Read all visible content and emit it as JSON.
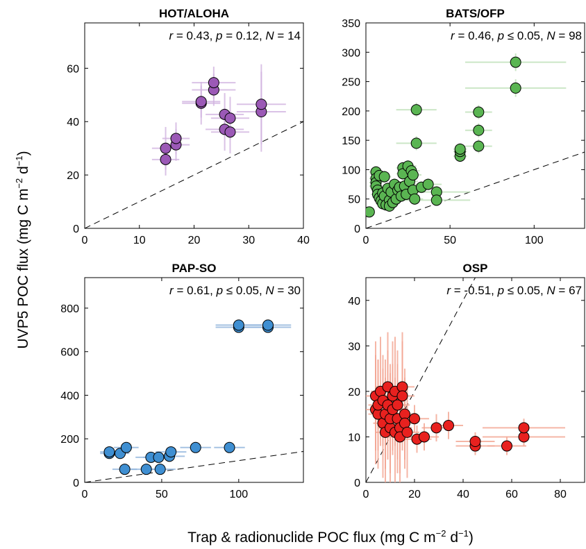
{
  "figure": {
    "xlabel_main": "Trap & radionuclide POC flux (mg C m",
    "xlabel_sup1": "−2",
    "xlabel_mid": " d",
    "xlabel_sup2": "−1",
    "xlabel_end": ")",
    "ylabel_main": "UVP5 POC flux (mg C m",
    "ylabel_sup1": "−2",
    "ylabel_mid": " d",
    "ylabel_sup2": "−1",
    "ylabel_end": ")"
  },
  "chart_data": [
    {
      "type": "scatter",
      "title": "HOT/ALOHA",
      "stats": {
        "r": "0.43",
        "p_rel": "=",
        "p": "0.12",
        "N": "14"
      },
      "xlim": [
        0,
        40
      ],
      "ylim": [
        0,
        77
      ],
      "xticks": [
        0,
        10,
        20,
        30,
        40
      ],
      "yticks": [
        0,
        20,
        40,
        60
      ],
      "one_to_one_line": true,
      "color": "#9b59b6",
      "errorbar_color": "#d2b4e0",
      "points": [
        {
          "x": 14.8,
          "y": 25.8,
          "xerr": 2.5,
          "yerr": 6
        },
        {
          "x": 14.8,
          "y": 30.0,
          "xerr": 2.5,
          "yerr": 8
        },
        {
          "x": 16.7,
          "y": 31.3,
          "xerr": 2.5,
          "yerr": 6
        },
        {
          "x": 16.7,
          "y": 33.7,
          "xerr": 2.5,
          "yerr": 6
        },
        {
          "x": 21.3,
          "y": 46.9,
          "xerr": 3.5,
          "yerr": 8
        },
        {
          "x": 21.3,
          "y": 47.5,
          "xerr": 3.5,
          "yerr": 6
        },
        {
          "x": 23.6,
          "y": 51.9,
          "xerr": 4,
          "yerr": 6
        },
        {
          "x": 23.6,
          "y": 54.6,
          "xerr": 4,
          "yerr": 6
        },
        {
          "x": 25.6,
          "y": 37.1,
          "xerr": 3.5,
          "yerr": 8
        },
        {
          "x": 25.6,
          "y": 42.7,
          "xerr": 3.5,
          "yerr": 8
        },
        {
          "x": 26.6,
          "y": 36.1,
          "xerr": 3.5,
          "yerr": 8
        },
        {
          "x": 26.6,
          "y": 41.3,
          "xerr": 3.5,
          "yerr": 8
        },
        {
          "x": 32.3,
          "y": 43.7,
          "xerr": 4.5,
          "yerr": 15
        },
        {
          "x": 32.3,
          "y": 46.5,
          "xerr": 4.5,
          "yerr": 15
        }
      ]
    },
    {
      "type": "scatter",
      "title": "BATS/OFP",
      "stats": {
        "r": "0.46",
        "p_rel": "≤",
        "p": "0.05",
        "N": "98"
      },
      "xlim": [
        0,
        130
      ],
      "ylim": [
        0,
        350
      ],
      "xticks": [
        0,
        50,
        100
      ],
      "yticks": [
        0,
        50,
        100,
        150,
        200,
        250,
        300,
        350
      ],
      "one_to_one_line": true,
      "color": "#5ab552",
      "errorbar_color": "#bfe0b8",
      "points": [
        {
          "x": 2,
          "y": 28,
          "xerr": 2,
          "yerr": 4
        },
        {
          "x": 6,
          "y": 96,
          "xerr": 4,
          "yerr": 10
        },
        {
          "x": 6,
          "y": 85,
          "xerr": 4,
          "yerr": 10
        },
        {
          "x": 6,
          "y": 78,
          "xerr": 4,
          "yerr": 10
        },
        {
          "x": 6,
          "y": 72,
          "xerr": 4,
          "yerr": 10
        },
        {
          "x": 7,
          "y": 65,
          "xerr": 4,
          "yerr": 10
        },
        {
          "x": 7,
          "y": 58,
          "xerr": 4,
          "yerr": 10
        },
        {
          "x": 8,
          "y": 90,
          "xerr": 4,
          "yerr": 10
        },
        {
          "x": 8,
          "y": 52,
          "xerr": 4,
          "yerr": 10
        },
        {
          "x": 9,
          "y": 47,
          "xerr": 4,
          "yerr": 10
        },
        {
          "x": 10,
          "y": 60,
          "xerr": 4,
          "yerr": 10
        },
        {
          "x": 10,
          "y": 42,
          "xerr": 4,
          "yerr": 10
        },
        {
          "x": 11,
          "y": 88,
          "xerr": 4,
          "yerr": 10
        },
        {
          "x": 11,
          "y": 55,
          "xerr": 4,
          "yerr": 10
        },
        {
          "x": 12,
          "y": 40,
          "xerr": 4,
          "yerr": 10
        },
        {
          "x": 13,
          "y": 68,
          "xerr": 4,
          "yerr": 10
        },
        {
          "x": 14,
          "y": 48,
          "xerr": 4,
          "yerr": 10
        },
        {
          "x": 14,
          "y": 38,
          "xerr": 4,
          "yerr": 10
        },
        {
          "x": 15,
          "y": 62,
          "xerr": 4,
          "yerr": 10
        },
        {
          "x": 16,
          "y": 44,
          "xerr": 4,
          "yerr": 10
        },
        {
          "x": 17,
          "y": 75,
          "xerr": 4,
          "yerr": 10
        },
        {
          "x": 18,
          "y": 50,
          "xerr": 4,
          "yerr": 10
        },
        {
          "x": 19,
          "y": 65,
          "xerr": 4,
          "yerr": 10
        },
        {
          "x": 20,
          "y": 70,
          "xerr": 4,
          "yerr": 10
        },
        {
          "x": 21,
          "y": 55,
          "xerr": 4,
          "yerr": 10
        },
        {
          "x": 22,
          "y": 103,
          "xerr": 4,
          "yerr": 10
        },
        {
          "x": 22,
          "y": 93,
          "xerr": 4,
          "yerr": 10
        },
        {
          "x": 23,
          "y": 72,
          "xerr": 4,
          "yerr": 10
        },
        {
          "x": 24,
          "y": 58,
          "xerr": 4,
          "yerr": 10
        },
        {
          "x": 25,
          "y": 106,
          "xerr": 5,
          "yerr": 10
        },
        {
          "x": 26,
          "y": 80,
          "xerr": 5,
          "yerr": 10
        },
        {
          "x": 27,
          "y": 98,
          "xerr": 5,
          "yerr": 10
        },
        {
          "x": 28,
          "y": 91,
          "xerr": 5,
          "yerr": 10
        },
        {
          "x": 28,
          "y": 65,
          "xerr": 5,
          "yerr": 10
        },
        {
          "x": 29,
          "y": 50,
          "xerr": 5,
          "yerr": 10
        },
        {
          "x": 30,
          "y": 145,
          "xerr": 12,
          "yerr": 12
        },
        {
          "x": 30,
          "y": 202,
          "xerr": 12,
          "yerr": 12
        },
        {
          "x": 33,
          "y": 70,
          "xerr": 8,
          "yerr": 10
        },
        {
          "x": 37,
          "y": 75,
          "xerr": 8,
          "yerr": 10
        },
        {
          "x": 42,
          "y": 62,
          "xerr": 20,
          "yerr": 10
        },
        {
          "x": 42,
          "y": 48,
          "xerr": 20,
          "yerr": 10
        },
        {
          "x": 56,
          "y": 123,
          "xerr": 4,
          "yerr": 10
        },
        {
          "x": 56,
          "y": 131,
          "xerr": 4,
          "yerr": 10
        },
        {
          "x": 56,
          "y": 135,
          "xerr": 4,
          "yerr": 10
        },
        {
          "x": 67,
          "y": 140,
          "xerr": 8,
          "yerr": 12
        },
        {
          "x": 67,
          "y": 167,
          "xerr": 8,
          "yerr": 12
        },
        {
          "x": 67,
          "y": 198,
          "xerr": 8,
          "yerr": 12
        },
        {
          "x": 89,
          "y": 283,
          "xerr": 30,
          "yerr": 15
        },
        {
          "x": 89,
          "y": 239,
          "xerr": 30,
          "yerr": 15
        }
      ]
    },
    {
      "type": "scatter",
      "title": "PAP-SO",
      "stats": {
        "r": "0.61",
        "p_rel": "≤",
        "p": "0.05",
        "N": "30"
      },
      "xlim": [
        0,
        142
      ],
      "ylim": [
        0,
        940
      ],
      "xticks": [
        0,
        50,
        100
      ],
      "yticks": [
        0,
        200,
        400,
        600,
        800
      ],
      "one_to_one_line": true,
      "color": "#3f8fd2",
      "errorbar_color": "#8fb4dc",
      "points": [
        {
          "x": 16,
          "y": 133,
          "xerr": 6,
          "yerr": 10
        },
        {
          "x": 16,
          "y": 140,
          "xerr": 6,
          "yerr": 10
        },
        {
          "x": 23,
          "y": 133,
          "xerr": 6,
          "yerr": 10
        },
        {
          "x": 26,
          "y": 60,
          "xerr": 8,
          "yerr": 10
        },
        {
          "x": 27,
          "y": 160,
          "xerr": 8,
          "yerr": 10
        },
        {
          "x": 40,
          "y": 60,
          "xerr": 10,
          "yerr": 10
        },
        {
          "x": 43,
          "y": 115,
          "xerr": 10,
          "yerr": 10
        },
        {
          "x": 49,
          "y": 60,
          "xerr": 10,
          "yerr": 10
        },
        {
          "x": 48,
          "y": 115,
          "xerr": 10,
          "yerr": 10
        },
        {
          "x": 55,
          "y": 120,
          "xerr": 10,
          "yerr": 10
        },
        {
          "x": 56,
          "y": 140,
          "xerr": 10,
          "yerr": 10
        },
        {
          "x": 72,
          "y": 160,
          "xerr": 10,
          "yerr": 10
        },
        {
          "x": 94,
          "y": 160,
          "xerr": 10,
          "yerr": 10
        },
        {
          "x": 100,
          "y": 712,
          "xerr": 15,
          "yerr": 10
        },
        {
          "x": 100,
          "y": 722,
          "xerr": 15,
          "yerr": 10
        },
        {
          "x": 119,
          "y": 712,
          "xerr": 15,
          "yerr": 10
        },
        {
          "x": 119,
          "y": 722,
          "xerr": 15,
          "yerr": 10
        }
      ]
    },
    {
      "type": "scatter",
      "title": "OSP",
      "stats": {
        "r": "-0.51",
        "p_rel": "≤",
        "p": "0.05",
        "N": "67"
      },
      "xlim": [
        0,
        90
      ],
      "ylim": [
        0,
        45
      ],
      "xticks": [
        0,
        20,
        40,
        60,
        80
      ],
      "yticks": [
        0,
        10,
        20,
        30,
        40
      ],
      "one_to_one_line": true,
      "color": "#e8211f",
      "errorbar_color": "#f3a491",
      "points": [
        {
          "x": 4,
          "y": 16,
          "xerr": 4,
          "yerr": 12
        },
        {
          "x": 4,
          "y": 19,
          "xerr": 4,
          "yerr": 12
        },
        {
          "x": 5,
          "y": 15,
          "xerr": 4,
          "yerr": 12
        },
        {
          "x": 5,
          "y": 17,
          "xerr": 4,
          "yerr": 10
        },
        {
          "x": 6,
          "y": 20,
          "xerr": 4,
          "yerr": 12
        },
        {
          "x": 7,
          "y": 13,
          "xerr": 4,
          "yerr": 12
        },
        {
          "x": 7,
          "y": 18,
          "xerr": 4,
          "yerr": 10
        },
        {
          "x": 8,
          "y": 15,
          "xerr": 4,
          "yerr": 12
        },
        {
          "x": 8,
          "y": 11,
          "xerr": 4,
          "yerr": 12
        },
        {
          "x": 9,
          "y": 21,
          "xerr": 5,
          "yerr": 12
        },
        {
          "x": 9,
          "y": 17,
          "xerr": 5,
          "yerr": 12
        },
        {
          "x": 10,
          "y": 12,
          "xerr": 5,
          "yerr": 12
        },
        {
          "x": 10,
          "y": 14,
          "xerr": 5,
          "yerr": 12
        },
        {
          "x": 11,
          "y": 19,
          "xerr": 5,
          "yerr": 12
        },
        {
          "x": 11,
          "y": 16,
          "xerr": 5,
          "yerr": 10
        },
        {
          "x": 12,
          "y": 11,
          "xerr": 5,
          "yerr": 12
        },
        {
          "x": 12,
          "y": 20,
          "xerr": 5,
          "yerr": 12
        },
        {
          "x": 13,
          "y": 14,
          "xerr": 5,
          "yerr": 12
        },
        {
          "x": 13,
          "y": 17,
          "xerr": 5,
          "yerr": 12
        },
        {
          "x": 14,
          "y": 12,
          "xerr": 5,
          "yerr": 10
        },
        {
          "x": 14,
          "y": 10,
          "xerr": 5,
          "yerr": 12
        },
        {
          "x": 15,
          "y": 21,
          "xerr": 5,
          "yerr": 12
        },
        {
          "x": 15,
          "y": 19,
          "xerr": 5,
          "yerr": 12
        },
        {
          "x": 16,
          "y": 15,
          "xerr": 5,
          "yerr": 10
        },
        {
          "x": 16,
          "y": 13,
          "xerr": 5,
          "yerr": 10
        },
        {
          "x": 17,
          "y": 11,
          "xerr": 5,
          "yerr": 10
        },
        {
          "x": 20,
          "y": 14,
          "xerr": 6,
          "yerr": 3
        },
        {
          "x": 21,
          "y": 9.5,
          "xerr": 6,
          "yerr": 3
        },
        {
          "x": 24,
          "y": 10,
          "xerr": 6,
          "yerr": 3
        },
        {
          "x": 29,
          "y": 12,
          "xerr": 6,
          "yerr": 3
        },
        {
          "x": 34,
          "y": 12.5,
          "xerr": 6,
          "yerr": 3
        },
        {
          "x": 45,
          "y": 8,
          "xerr": 8,
          "yerr": 2
        },
        {
          "x": 45,
          "y": 9,
          "xerr": 8,
          "yerr": 2
        },
        {
          "x": 58,
          "y": 8,
          "xerr": 8,
          "yerr": 2
        },
        {
          "x": 65,
          "y": 10,
          "xerr": 17,
          "yerr": 2
        },
        {
          "x": 65,
          "y": 12,
          "xerr": 17,
          "yerr": 2
        }
      ]
    }
  ]
}
